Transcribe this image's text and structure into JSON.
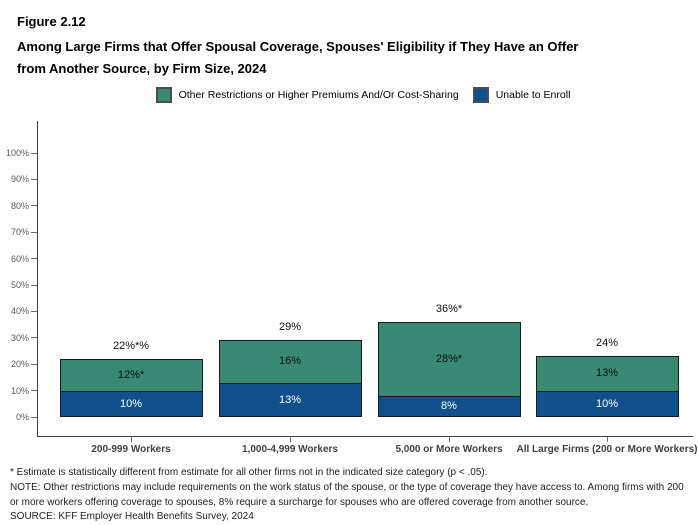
{
  "figure": {
    "label": "Figure 2.12",
    "title_line1": "Among Large Firms that Offer Spousal Coverage, Spouses' Eligibility if They Have an Offer",
    "title_line2": "from Another Source, by Firm Size, 2024"
  },
  "legend": [
    {
      "name": "other-restrictions",
      "label": "Other Restrictions or Higher Premiums And/Or Cost-Sharing",
      "color": "#388A74"
    },
    {
      "name": "unable-to-enroll",
      "label": "Unable to Enroll",
      "color": "#10508C"
    }
  ],
  "chart_data": {
    "type": "bar",
    "stacked": true,
    "title": "Among Large Firms that Offer Spousal Coverage, Spouses' Eligibility if They Have an Offer from Another Source, by Firm Size, 2024",
    "categories": [
      "200-999 Workers",
      "1,000-4,999 Workers",
      "5,000 or More Workers",
      "All Large Firms (200 or More Workers)"
    ],
    "series": [
      {
        "name": "Unable to Enroll",
        "color": "#10508C",
        "text_color": "#ffffff",
        "values": [
          10,
          13,
          8,
          10
        ],
        "labels": [
          "10%",
          "13%",
          "8%",
          "10%"
        ]
      },
      {
        "name": "Other Restrictions or Higher Premiums And/Or Cost-Sharing",
        "color": "#388A74",
        "text_color": "#0d0d0d",
        "values": [
          12,
          16,
          28,
          13
        ],
        "labels": [
          "12%*",
          "16%",
          "28%*",
          "13%"
        ]
      }
    ],
    "total_labels": [
      "22%*%",
      "29%",
      "36%*",
      "24%"
    ],
    "y_ticks": [
      "0%",
      "10%",
      "20%",
      "30%",
      "40%",
      "50%",
      "60%",
      "70%",
      "80%",
      "90%",
      "100%"
    ],
    "ylim": [
      0,
      100
    ],
    "grid": false,
    "legend_position": "top",
    "xlabel": "",
    "ylabel": ""
  },
  "footnotes": [
    "* Estimate is statistically different from estimate for all other firms not in the indicated size category (p < .05).",
    "NOTE: Other restrictions may include requirements on the work status of the spouse, or the type of coverage they have access to. Among firms with 200",
    "or more workers offering coverage to spouses, 8% require a surcharge for spouses who are offered coverage from another source.",
    "SOURCE: KFF Employer Health Benefits Survey, 2024"
  ]
}
